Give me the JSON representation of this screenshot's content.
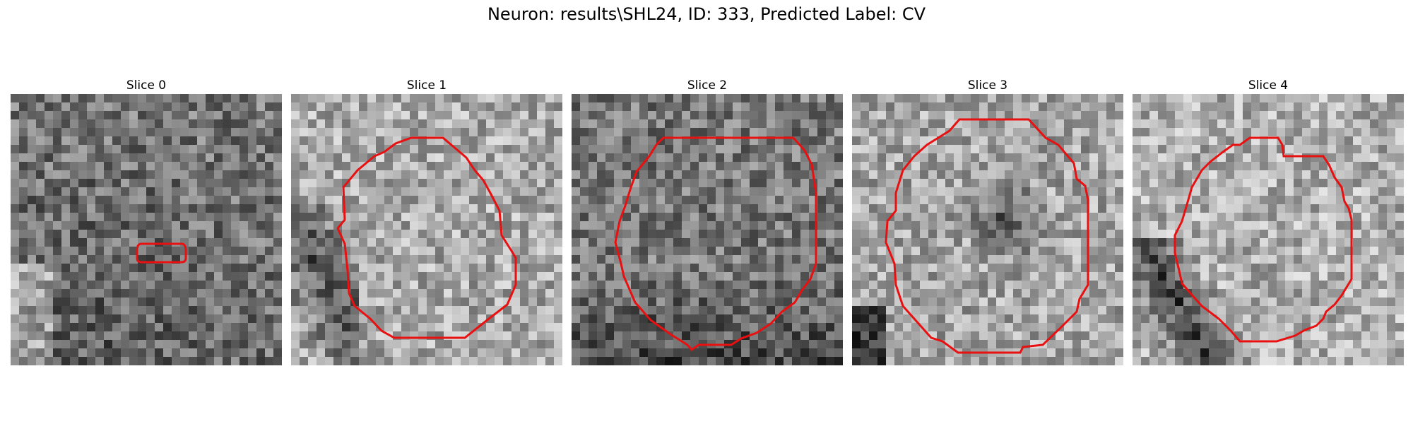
{
  "figure": {
    "title": "Neuron: results\\SHL24, ID: 333, Predicted Label: CV"
  },
  "colors": {
    "contour": "#e81010"
  },
  "panels": [
    {
      "title": "Slice 0",
      "seed": 11,
      "base": 120,
      "dark": "bottom-left-gradient"
    },
    {
      "title": "Slice 1",
      "seed": 23,
      "base": 170,
      "dark": "left-band"
    },
    {
      "title": "Slice 2",
      "seed": 37,
      "base": 120,
      "dark": "bottom"
    },
    {
      "title": "Slice 3",
      "seed": 53,
      "base": 165,
      "dark": "center-left-bottom"
    },
    {
      "title": "Slice 4",
      "seed": 71,
      "base": 175,
      "dark": "left-diagonal"
    }
  ]
}
